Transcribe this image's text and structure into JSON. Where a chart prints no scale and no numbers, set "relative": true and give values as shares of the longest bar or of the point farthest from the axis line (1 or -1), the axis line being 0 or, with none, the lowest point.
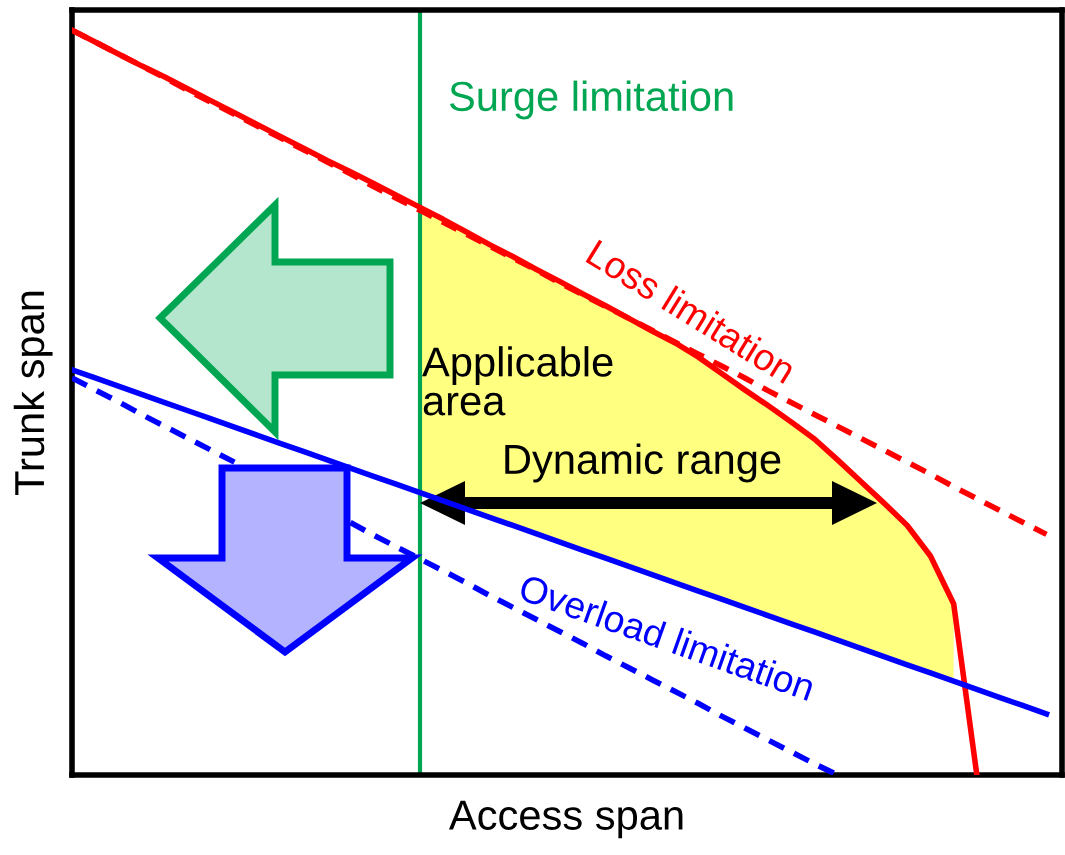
{
  "chart_data": {
    "type": "line",
    "relative": true,
    "xlabel": "Access span",
    "ylabel": "Trunk span",
    "categories": [
      null,
      null,
      null,
      null,
      null,
      null,
      null,
      null,
      null,
      null,
      null,
      null,
      null,
      null,
      null,
      null,
      null,
      null,
      null,
      null,
      null,
      null,
      null,
      null,
      null,
      null,
      null,
      null,
      null,
      null,
      null,
      null,
      null,
      null,
      null,
      null,
      null,
      null,
      null,
      null,
      null,
      null,
      null
    ],
    "grid": false,
    "series": [
      {
        "color": "#ff0000",
        "line_style": "dashed",
        "values": [
          1.0,
          0.984,
          0.968,
          0.952,
          0.936,
          0.919,
          0.903,
          0.887,
          0.871,
          0.855,
          0.839,
          0.823,
          0.807,
          0.79,
          0.774,
          0.758,
          0.742,
          0.726,
          0.71,
          0.694,
          0.678,
          0.661,
          0.645,
          0.629,
          0.613,
          0.597,
          0.581,
          0.565,
          0.549,
          0.533,
          0.516,
          0.5,
          0.484,
          0.468,
          0.452,
          0.436,
          0.42,
          0.404,
          0.387,
          0.371,
          0.355,
          0.339,
          0.323
        ]
      },
      {
        "color": "#0000ff",
        "line_style": "dashed",
        "values": [
          0.533,
          0.517,
          0.501,
          0.484,
          0.468,
          0.452,
          0.436,
          0.42,
          null,
          null,
          null,
          null,
          0.339,
          0.322,
          0.306,
          0.29,
          0.274,
          0.258,
          0.241,
          0.225,
          0.209,
          0.193,
          0.177,
          0.16,
          0.144,
          0.128,
          0.112,
          0.096,
          0.079,
          0.063,
          0.047,
          0.031,
          0.015,
          0,
          null,
          null,
          null,
          null,
          null,
          null,
          null,
          null,
          null
        ]
      },
      {
        "name": "Loss limitation",
        "color": "#ff0000",
        "line_style": "solid",
        "values": [
          1.0,
          0.984,
          0.968,
          0.952,
          0.937,
          0.921,
          0.905,
          0.889,
          0.873,
          0.857,
          0.841,
          0.825,
          0.81,
          0.794,
          0.778,
          0.762,
          0.746,
          0.729,
          0.712,
          0.696,
          0.679,
          0.663,
          0.646,
          0.63,
          0.613,
          0.596,
          0.58,
          0.561,
          0.539,
          0.517,
          0.496,
          0.474,
          0.451,
          0.423,
          0.394,
          0.365,
          0.335,
          0.294,
          0.23,
          0,
          null,
          null,
          null
        ],
        "lower": [
          null,
          null,
          null,
          null,
          null,
          null,
          null,
          null,
          null,
          null,
          null,
          null,
          null,
          null,
          null,
          0.379,
          null,
          0.357,
          0.346,
          0.335,
          0.324,
          0.313,
          0.302,
          0.291,
          0.28,
          0.269,
          0.258,
          0.247,
          0.236,
          0.225,
          0.214,
          0.203,
          0.192,
          0.181,
          0.17,
          0.159,
          0.148,
          0.137,
          0.126,
          null,
          null,
          null,
          null
        ],
        "upper": [
          null,
          null,
          null,
          null,
          null,
          null,
          null,
          null,
          null,
          null,
          null,
          null,
          null,
          null,
          null,
          0.762,
          null,
          0.729,
          0.712,
          0.696,
          0.679,
          0.663,
          0.646,
          0.63,
          0.613,
          0.596,
          0.58,
          0.561,
          0.539,
          0.517,
          0.496,
          0.474,
          0.451,
          0.423,
          0.394,
          0.365,
          0.335,
          0.294,
          0.23,
          null,
          null,
          null,
          null
        ]
      },
      {
        "name": "Overload limitation",
        "color": "#0000ff",
        "line_style": "solid",
        "values": [
          0.544,
          0.533,
          0.522,
          0.511,
          0.5,
          0.489,
          0.478,
          0.467,
          0.456,
          0.445,
          0.434,
          0.423,
          0.412,
          0.401,
          0.39,
          0.379,
          0.368,
          0.357,
          0.346,
          0.335,
          0.324,
          0.313,
          0.302,
          0.291,
          0.28,
          0.269,
          0.258,
          0.247,
          0.236,
          0.225,
          0.214,
          0.203,
          0.192,
          0.181,
          0.17,
          0.159,
          0.148,
          0.137,
          0.126,
          0.115,
          0.104,
          0.093,
          0.082
        ]
      }
    ],
    "annotations": [
      "Surge limitation",
      "Applicable\narea",
      "Dynamic range"
    ]
  }
}
